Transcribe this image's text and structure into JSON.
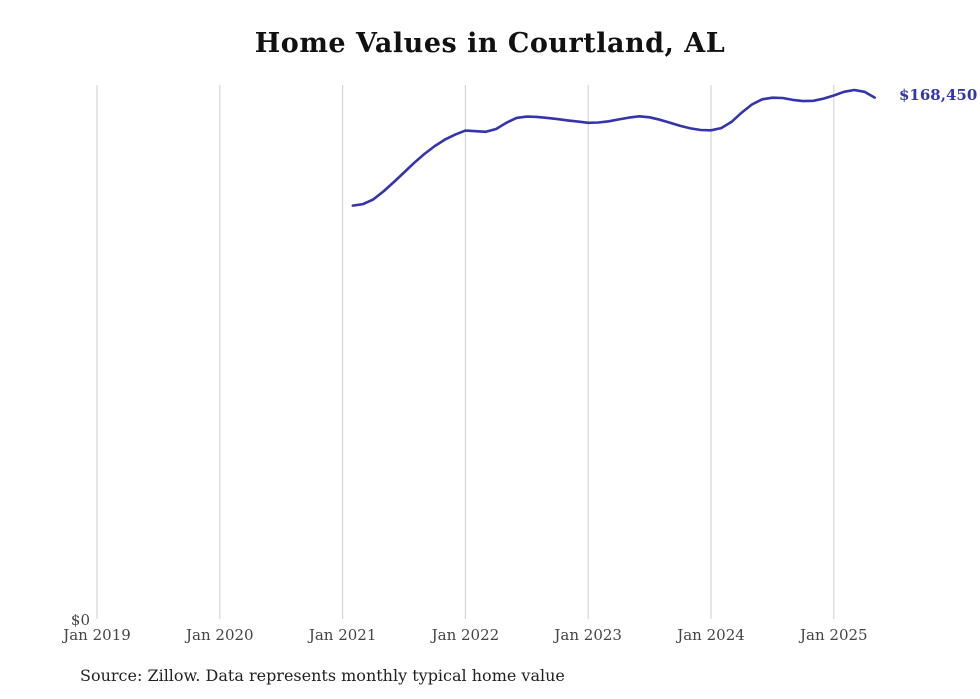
{
  "title": "Home Values in Courtland, AL",
  "y_zero_label": "$0",
  "end_label": "$168,450",
  "source_note": "Source: Zillow. Data represents monthly typical home value",
  "colors": {
    "line": "#3434ad",
    "grid": "#cccccc",
    "tick_label": "#444444",
    "title": "#111111",
    "annotation": "#3434ad"
  },
  "chart_data": {
    "type": "line",
    "title": "Home Values in Courtland, AL",
    "xlabel": "",
    "ylabel": "",
    "ylim": [
      0,
      172500
    ],
    "grid": "vertical-only",
    "legend": "none",
    "x_tick_labels": [
      "Jan 2019",
      "Jan 2020",
      "Jan 2021",
      "Jan 2022",
      "Jan 2023",
      "Jan 2024",
      "Jan 2025"
    ],
    "annotations": [
      {
        "text": "$168,450",
        "position": "end-of-line"
      },
      {
        "text": "$0",
        "position": "y-axis-bottom"
      }
    ],
    "series": [
      {
        "name": "Typical home value",
        "x": [
          "2021-02",
          "2021-03",
          "2021-04",
          "2021-05",
          "2021-06",
          "2021-07",
          "2021-08",
          "2021-09",
          "2021-10",
          "2021-11",
          "2021-12",
          "2022-01",
          "2022-02",
          "2022-03",
          "2022-04",
          "2022-05",
          "2022-06",
          "2022-07",
          "2022-08",
          "2022-09",
          "2022-10",
          "2022-11",
          "2022-12",
          "2023-01",
          "2023-02",
          "2023-03",
          "2023-04",
          "2023-05",
          "2023-06",
          "2023-07",
          "2023-08",
          "2023-09",
          "2023-10",
          "2023-11",
          "2023-12",
          "2024-01",
          "2024-02",
          "2024-03",
          "2024-04",
          "2024-05",
          "2024-06",
          "2024-07",
          "2024-08",
          "2024-09",
          "2024-10",
          "2024-11",
          "2024-12",
          "2025-01",
          "2025-02",
          "2025-03",
          "2025-04",
          "2025-05"
        ],
        "values": [
          133600,
          134100,
          135600,
          138200,
          141200,
          144300,
          147400,
          150300,
          152800,
          154900,
          156500,
          157800,
          157600,
          157400,
          158300,
          160300,
          161900,
          162300,
          162200,
          161900,
          161500,
          161100,
          160700,
          160300,
          160400,
          160800,
          161400,
          162000,
          162400,
          162100,
          161300,
          160300,
          159300,
          158500,
          158000,
          157900,
          158600,
          160600,
          163600,
          166200,
          167900,
          168400,
          168300,
          167700,
          167300,
          167400,
          168100,
          169100,
          170300,
          170900,
          170300,
          168450
        ]
      }
    ]
  }
}
